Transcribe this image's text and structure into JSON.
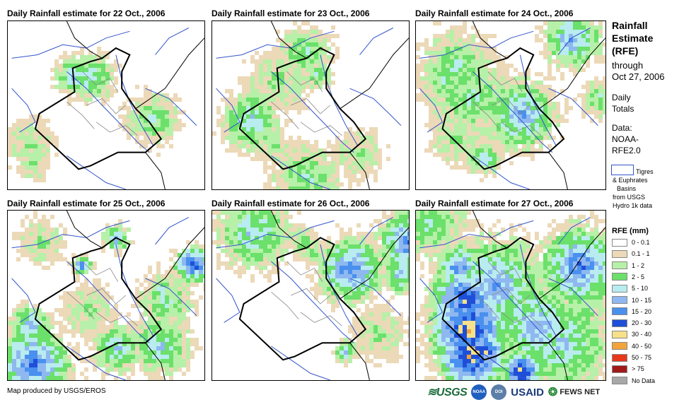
{
  "panels": [
    {
      "title": "Daily Rainfall estimate for 22 Oct., 2006",
      "intensity": 1
    },
    {
      "title": "Daily Rainfall estimate for 23 Oct., 2006",
      "intensity": 2
    },
    {
      "title": "Daily Rainfall estimate for 24 Oct., 2006",
      "intensity": 3
    },
    {
      "title": "Daily Rainfall estimate for 25 Oct., 2006",
      "intensity": 4
    },
    {
      "title": "Daily Rainfall estimate for 26 Oct., 2006",
      "intensity": 3
    },
    {
      "title": "Daily Rainfall estimate for 27 Oct., 2006",
      "intensity": 5
    }
  ],
  "side": {
    "title_lines": [
      "Rainfall",
      "Estimate",
      "(RFE)"
    ],
    "through": "through",
    "date": "Oct 27, 2006",
    "daily": "Daily",
    "totals": "Totals",
    "data_label": "Data:",
    "source_1": "NOAA-",
    "source_2": "RFE2.0",
    "basin_1": "Tigres",
    "basin_2": "& Euphrates",
    "basin_3": "Basins",
    "basin_4": "from USGS",
    "basin_5": "Hydro 1k data"
  },
  "legend": {
    "title": "RFE (mm)",
    "items": [
      {
        "label": "0 - 0.1",
        "color": "#ffffff"
      },
      {
        "label": "0.1 - 1",
        "color": "#ecd9b8"
      },
      {
        "label": "1 - 2",
        "color": "#b7f0a8"
      },
      {
        "label": "2 - 5",
        "color": "#6be06b"
      },
      {
        "label": "5 - 10",
        "color": "#b8ecef"
      },
      {
        "label": "10 - 15",
        "color": "#8fb8f0"
      },
      {
        "label": "15 - 20",
        "color": "#4a90ee"
      },
      {
        "label": "20 - 30",
        "color": "#1f4fd8"
      },
      {
        "label": "30 - 40",
        "color": "#f6e08a"
      },
      {
        "label": "40 - 50",
        "color": "#f2a43a"
      },
      {
        "label": "50 - 75",
        "color": "#e8381c"
      },
      {
        "label": "> 75",
        "color": "#a01a1a"
      },
      {
        "label": "No Data",
        "color": "#a8a8a8"
      }
    ]
  },
  "footer": {
    "credit": "Map produced by USGS/EROS",
    "usgs": "USGS",
    "noaa": "NOAA",
    "doi": "DOI",
    "usaid": "USAID",
    "fews": "FEWS NET"
  }
}
